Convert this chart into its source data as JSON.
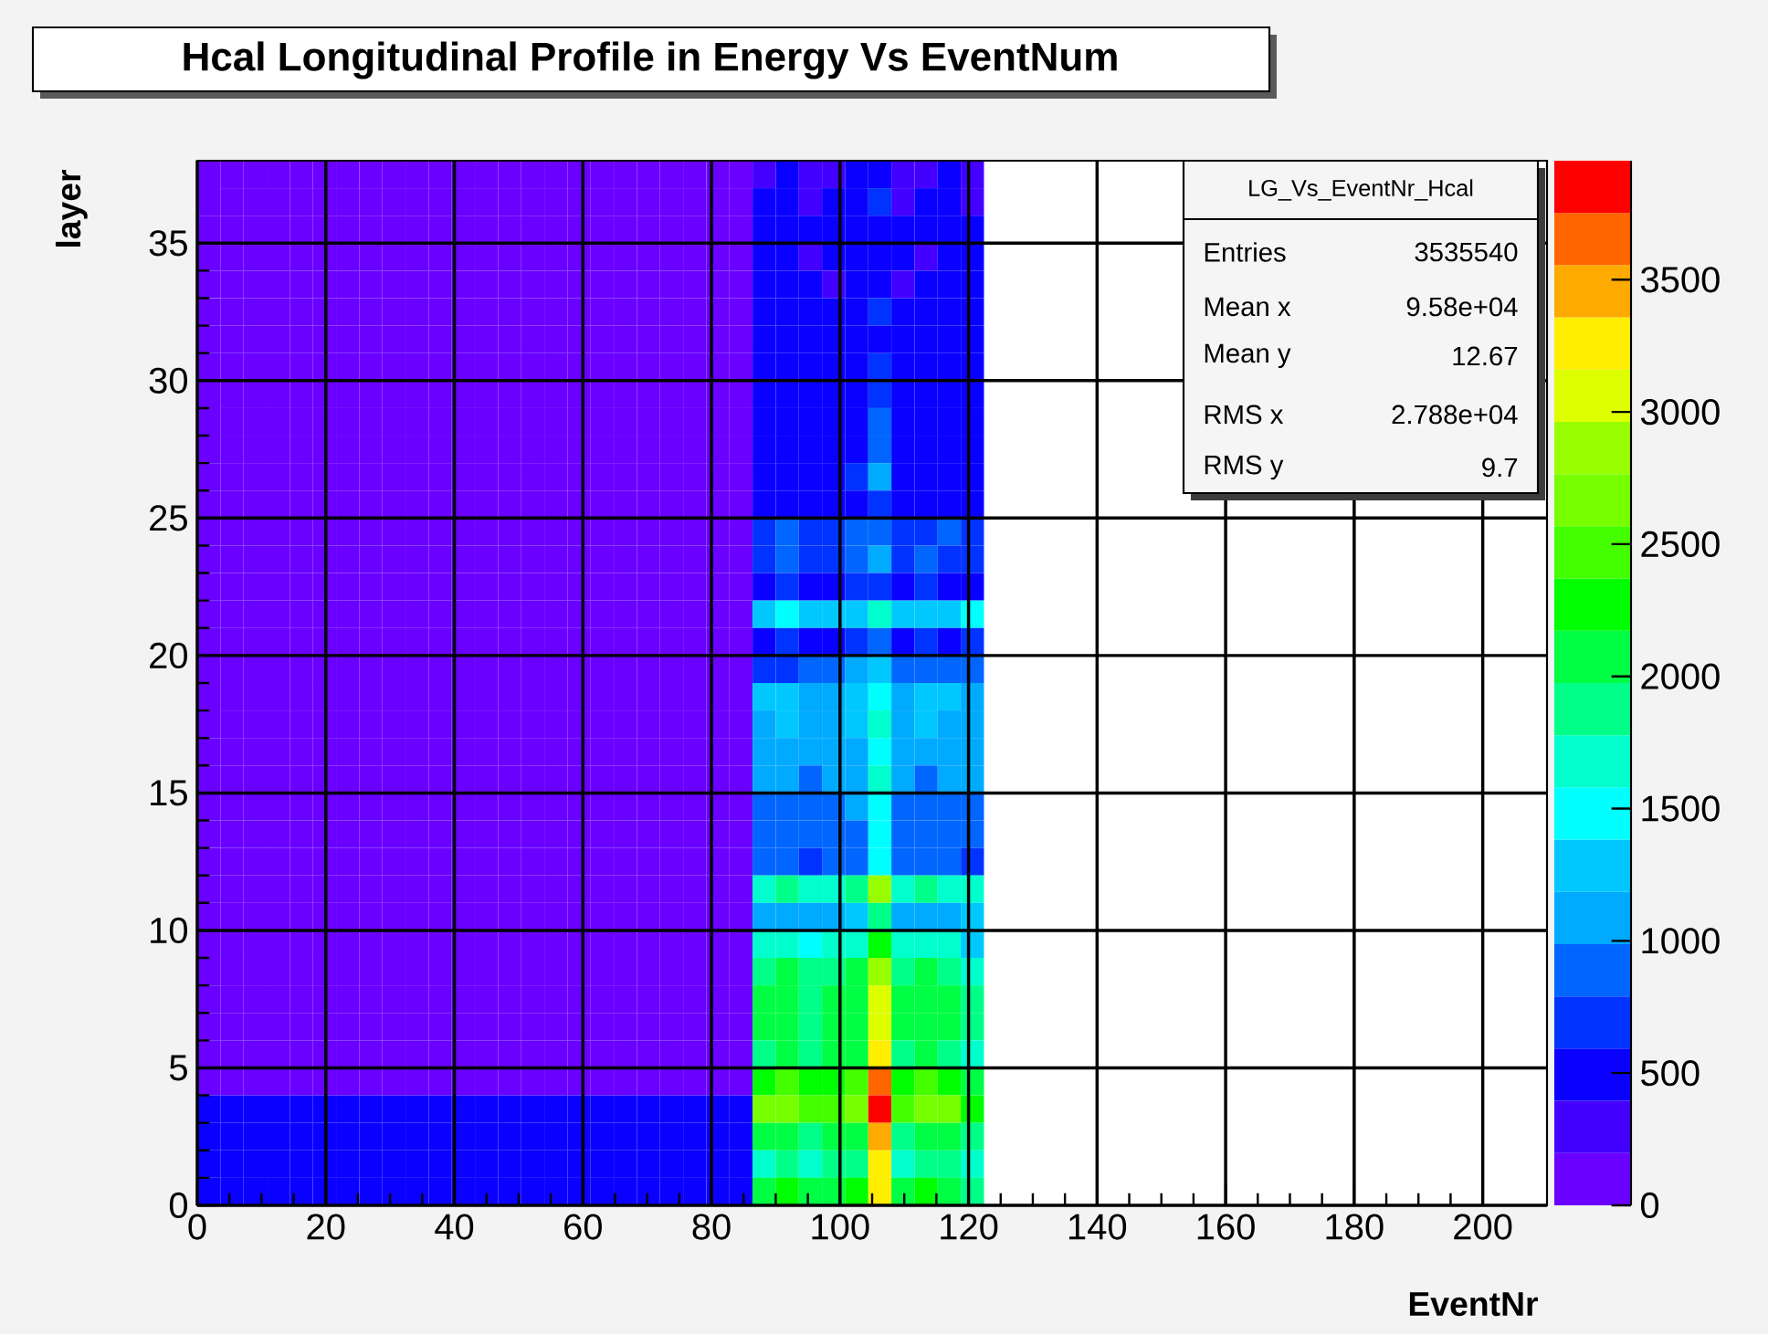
{
  "chart_data": {
    "type": "heatmap",
    "title": "Hcal Longitudinal Profile in Energy Vs EventNum",
    "xlabel": "EventNr",
    "ylabel": "layer",
    "annotations": [
      "LG_Vs_EventNr_Hcal",
      "Entries",
      "3535540",
      "Mean x",
      "9.58e+04",
      "Mean y",
      "12.67",
      "RMS x",
      "2.788e+04",
      "RMS y",
      "9.7"
    ],
    "x": [
      1.8,
      5.4,
      9,
      12.6,
      16.2,
      19.8,
      23.4,
      27,
      30.6,
      34.2,
      37.8,
      41.4,
      45,
      48.6,
      52.2,
      55.8,
      59.4,
      63,
      66.6,
      70.2,
      73.8,
      77.4,
      81,
      84.6,
      88.2,
      91.8,
      95.4,
      99,
      102.6,
      106.2,
      109.8,
      113.4,
      117,
      120.6
    ],
    "xlim": [
      0,
      210
    ],
    "xticks": [
      0,
      20,
      40,
      60,
      80,
      100,
      120,
      140,
      160,
      180,
      200
    ],
    "ylim": [
      0,
      38
    ],
    "yticks": [
      0,
      5,
      10,
      15,
      20,
      25,
      30,
      35
    ],
    "clim": [
      0,
      3950
    ],
    "cticks": [
      0,
      500,
      1000,
      1500,
      2000,
      2500,
      3000,
      3500
    ],
    "grid": true,
    "cells": [
      [
        150,
        150,
        150,
        150,
        150,
        150,
        150,
        150,
        150,
        150,
        150,
        150,
        150,
        150,
        150,
        150,
        150,
        150,
        150,
        150,
        150,
        150,
        150,
        150,
        350,
        450,
        300,
        350,
        500,
        450,
        300,
        350,
        400,
        300
      ],
      [
        150,
        150,
        150,
        150,
        150,
        150,
        150,
        150,
        150,
        150,
        150,
        150,
        150,
        150,
        150,
        150,
        150,
        150,
        150,
        150,
        150,
        150,
        150,
        150,
        400,
        500,
        350,
        400,
        550,
        700,
        350,
        400,
        450,
        350
      ],
      [
        150,
        150,
        150,
        150,
        150,
        150,
        150,
        150,
        150,
        150,
        150,
        150,
        150,
        150,
        150,
        150,
        150,
        150,
        150,
        150,
        150,
        150,
        150,
        150,
        450,
        450,
        400,
        450,
        500,
        500,
        400,
        450,
        500,
        400
      ],
      [
        150,
        150,
        150,
        150,
        150,
        150,
        150,
        150,
        150,
        150,
        150,
        150,
        150,
        150,
        150,
        150,
        150,
        150,
        150,
        150,
        150,
        150,
        150,
        150,
        400,
        500,
        350,
        400,
        450,
        450,
        400,
        350,
        450,
        400
      ],
      [
        150,
        150,
        150,
        150,
        150,
        150,
        150,
        150,
        150,
        150,
        150,
        150,
        150,
        150,
        150,
        150,
        150,
        150,
        150,
        150,
        150,
        150,
        150,
        150,
        450,
        400,
        400,
        350,
        500,
        450,
        350,
        400,
        450,
        400
      ],
      [
        150,
        150,
        150,
        150,
        150,
        150,
        150,
        150,
        150,
        150,
        150,
        150,
        150,
        150,
        150,
        150,
        150,
        150,
        150,
        150,
        150,
        150,
        150,
        150,
        450,
        450,
        400,
        450,
        550,
        600,
        400,
        450,
        500,
        450
      ],
      [
        150,
        150,
        150,
        150,
        150,
        150,
        150,
        150,
        150,
        150,
        150,
        150,
        150,
        150,
        150,
        150,
        150,
        150,
        150,
        150,
        150,
        150,
        150,
        150,
        500,
        450,
        450,
        400,
        500,
        550,
        450,
        400,
        500,
        450
      ],
      [
        150,
        150,
        150,
        150,
        150,
        150,
        150,
        150,
        150,
        150,
        150,
        150,
        150,
        150,
        150,
        150,
        150,
        150,
        150,
        150,
        150,
        150,
        150,
        150,
        450,
        500,
        450,
        450,
        550,
        650,
        450,
        450,
        500,
        450
      ],
      [
        150,
        150,
        150,
        150,
        150,
        150,
        150,
        150,
        150,
        150,
        150,
        150,
        150,
        150,
        150,
        150,
        150,
        150,
        150,
        150,
        150,
        150,
        150,
        150,
        450,
        450,
        400,
        450,
        500,
        600,
        400,
        450,
        450,
        400
      ],
      [
        150,
        150,
        150,
        150,
        150,
        150,
        150,
        150,
        150,
        150,
        150,
        150,
        150,
        150,
        150,
        150,
        150,
        150,
        150,
        150,
        150,
        150,
        150,
        150,
        450,
        500,
        450,
        450,
        550,
        800,
        450,
        450,
        500,
        450
      ],
      [
        150,
        150,
        150,
        150,
        150,
        150,
        150,
        150,
        150,
        150,
        150,
        150,
        150,
        150,
        150,
        150,
        150,
        150,
        150,
        150,
        150,
        150,
        150,
        150,
        500,
        450,
        450,
        500,
        500,
        900,
        450,
        500,
        500,
        450
      ],
      [
        150,
        150,
        150,
        150,
        150,
        150,
        150,
        150,
        150,
        150,
        150,
        150,
        150,
        150,
        150,
        150,
        150,
        150,
        150,
        150,
        150,
        150,
        150,
        150,
        550,
        500,
        500,
        500,
        600,
        1100,
        500,
        500,
        550,
        500
      ],
      [
        150,
        150,
        150,
        150,
        150,
        150,
        150,
        150,
        150,
        150,
        150,
        150,
        150,
        150,
        150,
        150,
        150,
        150,
        150,
        150,
        150,
        150,
        150,
        150,
        500,
        500,
        450,
        500,
        550,
        700,
        500,
        500,
        500,
        500
      ],
      [
        150,
        150,
        150,
        150,
        150,
        150,
        150,
        150,
        150,
        150,
        150,
        150,
        150,
        150,
        150,
        150,
        150,
        150,
        150,
        150,
        150,
        150,
        150,
        150,
        750,
        800,
        700,
        650,
        800,
        900,
        700,
        750,
        800,
        700
      ],
      [
        150,
        150,
        150,
        150,
        150,
        150,
        150,
        150,
        150,
        150,
        150,
        150,
        150,
        150,
        150,
        150,
        150,
        150,
        150,
        150,
        150,
        150,
        150,
        150,
        700,
        900,
        650,
        600,
        850,
        1100,
        700,
        800,
        700,
        650
      ],
      [
        150,
        150,
        150,
        150,
        150,
        150,
        150,
        150,
        150,
        150,
        150,
        150,
        150,
        150,
        150,
        150,
        150,
        150,
        150,
        150,
        150,
        150,
        150,
        150,
        550,
        600,
        500,
        500,
        600,
        700,
        550,
        600,
        550,
        500
      ],
      [
        150,
        150,
        150,
        150,
        150,
        150,
        150,
        150,
        150,
        150,
        150,
        150,
        150,
        150,
        150,
        150,
        150,
        150,
        150,
        150,
        150,
        150,
        150,
        150,
        1300,
        1400,
        1200,
        1250,
        1350,
        1700,
        1300,
        1350,
        1300,
        1400
      ],
      [
        150,
        150,
        150,
        150,
        150,
        150,
        150,
        150,
        150,
        150,
        150,
        150,
        150,
        150,
        150,
        150,
        150,
        150,
        150,
        150,
        150,
        150,
        150,
        150,
        550,
        600,
        500,
        550,
        650,
        800,
        550,
        600,
        550,
        600
      ],
      [
        150,
        150,
        150,
        150,
        150,
        150,
        150,
        150,
        150,
        150,
        150,
        150,
        150,
        150,
        150,
        150,
        150,
        150,
        150,
        150,
        150,
        150,
        150,
        150,
        700,
        750,
        850,
        900,
        1000,
        1300,
        900,
        850,
        800,
        800
      ],
      [
        150,
        150,
        150,
        150,
        150,
        150,
        150,
        150,
        150,
        150,
        150,
        150,
        150,
        150,
        150,
        150,
        150,
        150,
        150,
        150,
        150,
        150,
        150,
        150,
        1200,
        1300,
        1100,
        1150,
        1250,
        1500,
        1150,
        1250,
        1200,
        1100
      ],
      [
        150,
        150,
        150,
        150,
        150,
        150,
        150,
        150,
        150,
        150,
        150,
        150,
        150,
        150,
        150,
        150,
        150,
        150,
        150,
        150,
        150,
        150,
        150,
        150,
        1100,
        1200,
        1000,
        1100,
        1200,
        1600,
        1100,
        1200,
        1100,
        1000
      ],
      [
        150,
        150,
        150,
        150,
        150,
        150,
        150,
        150,
        150,
        150,
        150,
        150,
        150,
        150,
        150,
        150,
        150,
        150,
        150,
        150,
        150,
        150,
        150,
        150,
        1000,
        1100,
        1050,
        1000,
        1100,
        1500,
        1050,
        1100,
        1000,
        1050
      ],
      [
        150,
        150,
        150,
        150,
        150,
        150,
        150,
        150,
        150,
        150,
        150,
        150,
        150,
        150,
        150,
        150,
        150,
        150,
        150,
        150,
        150,
        150,
        150,
        150,
        1000,
        1000,
        950,
        1000,
        1050,
        1600,
        1000,
        950,
        1000,
        1000
      ],
      [
        150,
        150,
        150,
        150,
        150,
        150,
        150,
        150,
        150,
        150,
        150,
        150,
        150,
        150,
        150,
        150,
        150,
        150,
        150,
        150,
        150,
        150,
        150,
        150,
        900,
        950,
        850,
        900,
        1000,
        1500,
        900,
        900,
        950,
        900
      ],
      [
        150,
        150,
        150,
        150,
        150,
        150,
        150,
        150,
        150,
        150,
        150,
        150,
        150,
        150,
        150,
        150,
        150,
        150,
        150,
        150,
        150,
        150,
        150,
        150,
        850,
        850,
        800,
        850,
        900,
        1400,
        800,
        850,
        850,
        850
      ],
      [
        150,
        150,
        150,
        150,
        150,
        150,
        150,
        150,
        150,
        150,
        150,
        150,
        150,
        150,
        150,
        150,
        150,
        150,
        150,
        150,
        150,
        150,
        150,
        150,
        800,
        850,
        750,
        800,
        900,
        1400,
        800,
        800,
        850,
        750
      ],
      [
        150,
        150,
        150,
        150,
        150,
        150,
        150,
        150,
        150,
        150,
        150,
        150,
        150,
        150,
        150,
        150,
        150,
        150,
        150,
        150,
        150,
        150,
        150,
        150,
        1700,
        1800,
        1600,
        1700,
        1800,
        2900,
        1700,
        1800,
        1700,
        1600
      ],
      [
        150,
        150,
        150,
        150,
        150,
        150,
        150,
        150,
        150,
        150,
        150,
        150,
        150,
        150,
        150,
        150,
        150,
        150,
        150,
        150,
        150,
        150,
        150,
        150,
        1100,
        1150,
        1000,
        1100,
        1200,
        1800,
        1100,
        1150,
        1100,
        1200
      ],
      [
        150,
        150,
        150,
        150,
        150,
        150,
        150,
        150,
        150,
        150,
        150,
        150,
        150,
        150,
        150,
        150,
        150,
        150,
        150,
        150,
        150,
        150,
        150,
        150,
        1600,
        1700,
        1500,
        1600,
        1700,
        2300,
        1600,
        1700,
        1600,
        1300
      ],
      [
        150,
        150,
        150,
        150,
        150,
        150,
        150,
        150,
        150,
        150,
        150,
        150,
        150,
        150,
        150,
        150,
        150,
        150,
        150,
        150,
        150,
        150,
        150,
        150,
        1900,
        2000,
        1800,
        1900,
        2000,
        2900,
        1900,
        2000,
        1900,
        1700
      ],
      [
        150,
        150,
        150,
        150,
        150,
        150,
        150,
        150,
        150,
        150,
        150,
        150,
        150,
        150,
        150,
        150,
        150,
        150,
        150,
        150,
        150,
        150,
        150,
        150,
        2000,
        2100,
        1900,
        2000,
        2100,
        3100,
        2000,
        2100,
        2000,
        1800
      ],
      [
        150,
        150,
        150,
        150,
        150,
        150,
        150,
        150,
        150,
        150,
        150,
        150,
        150,
        150,
        150,
        150,
        150,
        150,
        150,
        150,
        150,
        150,
        150,
        150,
        2000,
        2100,
        1900,
        2000,
        2100,
        3000,
        2000,
        2100,
        2000,
        1800
      ],
      [
        150,
        150,
        150,
        150,
        150,
        150,
        150,
        150,
        150,
        150,
        150,
        150,
        150,
        150,
        150,
        150,
        150,
        150,
        150,
        150,
        150,
        150,
        150,
        150,
        1900,
        2000,
        1800,
        2000,
        2100,
        3300,
        1900,
        2000,
        1900,
        1700
      ],
      [
        150,
        150,
        150,
        150,
        150,
        150,
        150,
        150,
        150,
        150,
        150,
        150,
        150,
        150,
        150,
        150,
        150,
        150,
        150,
        150,
        150,
        150,
        150,
        150,
        2300,
        2400,
        2200,
        2300,
        2400,
        3600,
        2300,
        2400,
        2300,
        2000
      ],
      [
        400,
        400,
        400,
        400,
        400,
        400,
        400,
        400,
        400,
        400,
        400,
        400,
        400,
        400,
        400,
        400,
        400,
        400,
        400,
        400,
        400,
        400,
        400,
        400,
        2600,
        2700,
        2500,
        2500,
        2700,
        3800,
        2500,
        2600,
        2700,
        2300
      ],
      [
        400,
        400,
        400,
        400,
        400,
        400,
        400,
        400,
        400,
        400,
        400,
        400,
        400,
        400,
        400,
        400,
        400,
        400,
        400,
        400,
        400,
        400,
        400,
        400,
        2000,
        2100,
        1900,
        2000,
        2100,
        3400,
        1900,
        2000,
        2100,
        1800
      ],
      [
        400,
        400,
        400,
        400,
        400,
        400,
        400,
        400,
        400,
        400,
        400,
        400,
        400,
        400,
        400,
        400,
        400,
        400,
        400,
        400,
        400,
        400,
        400,
        400,
        1700,
        1800,
        1700,
        1800,
        1900,
        3200,
        1700,
        1800,
        1800,
        1600
      ],
      [
        400,
        400,
        400,
        400,
        400,
        400,
        400,
        400,
        400,
        400,
        400,
        400,
        400,
        400,
        400,
        400,
        400,
        400,
        400,
        400,
        400,
        400,
        400,
        400,
        2100,
        2200,
        2000,
        2100,
        2200,
        3300,
        2100,
        2200,
        2000,
        1900
      ]
    ]
  }
}
